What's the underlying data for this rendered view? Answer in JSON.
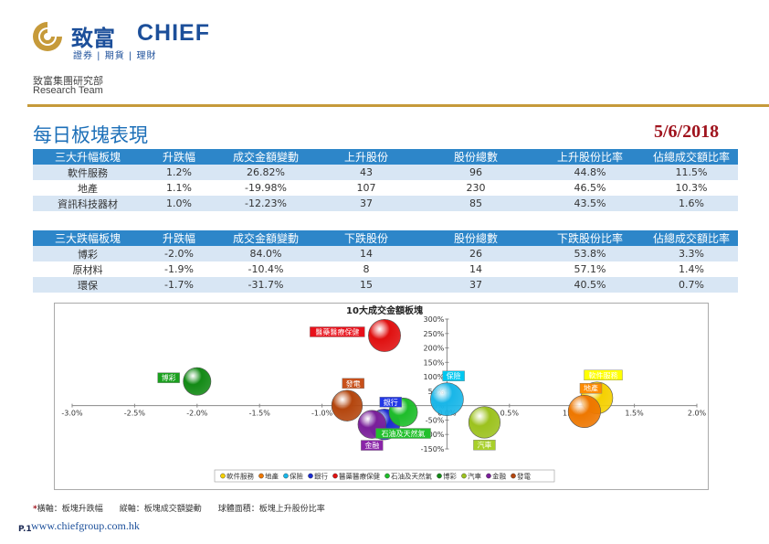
{
  "logo": {
    "cn": "致富",
    "en": "CHIEF",
    "sub": "證券 | 期貨 | 理財"
  },
  "dept": {
    "cn": "致富集團研究部",
    "en": "Research Team"
  },
  "title": "每日板塊表現",
  "date": "5/6/2018",
  "colors": {
    "header_bg": "#2d86c9",
    "alt_row": "#d8e6f4",
    "gold": "#c69a3a",
    "date": "#a0141e"
  },
  "top_table": {
    "headers": [
      "三大升幅板塊",
      "升跌幅",
      "成交金額變動",
      "上升股份",
      "股份總數",
      "上升股份比率",
      "佔總成交額比率"
    ],
    "rows": [
      [
        "軟件服務",
        "1.2%",
        "26.82%",
        "43",
        "96",
        "44.8%",
        "11.5%"
      ],
      [
        "地產",
        "1.1%",
        "-19.98%",
        "107",
        "230",
        "46.5%",
        "10.3%"
      ],
      [
        "資訊科技器材",
        "1.0%",
        "-12.23%",
        "37",
        "85",
        "43.5%",
        "1.6%"
      ]
    ]
  },
  "bottom_table": {
    "headers": [
      "三大跌幅板塊",
      "升跌幅",
      "成交金額變動",
      "下跌股份",
      "股份總數",
      "下跌股份比率",
      "佔總成交額比率"
    ],
    "rows": [
      [
        "博彩",
        "-2.0%",
        "84.0%",
        "14",
        "26",
        "53.8%",
        "3.3%"
      ],
      [
        "原材料",
        "-1.9%",
        "-10.4%",
        "8",
        "14",
        "57.1%",
        "1.4%"
      ],
      [
        "環保",
        "-1.7%",
        "-31.7%",
        "15",
        "37",
        "40.5%",
        "0.7%"
      ]
    ]
  },
  "chart_data": {
    "type": "scatter",
    "title": "10大成交金額板塊",
    "x_ticks": [
      "-3.0%",
      "-2.5%",
      "-2.0%",
      "-1.5%",
      "-1.0%",
      "-0.5%",
      "0.0%",
      "0.5%",
      "1.0%",
      "1.5%",
      "2.0%"
    ],
    "y_ticks": [
      "300%",
      "250%",
      "200%",
      "150%",
      "100%",
      "50%",
      "0%",
      "-50%",
      "-100%",
      "-150%"
    ],
    "xlim": [
      -3.0,
      2.0
    ],
    "ylim": [
      -150,
      300
    ],
    "series": [
      {
        "name": "軟件服務",
        "x": 1.2,
        "y": 26.82,
        "size": 44.8,
        "color": "#f5d000",
        "label_bg": "#ffff00",
        "label_dir": "up"
      },
      {
        "name": "地產",
        "x": 1.1,
        "y": -19.98,
        "size": 46.5,
        "color": "#ee7700",
        "label_bg": "#ff8c00",
        "label_dir": "up"
      },
      {
        "name": "保險",
        "x": 0.0,
        "y": 22,
        "size": 48,
        "color": "#19b6e8",
        "label_bg": "#00c8f0",
        "label_dir": "up"
      },
      {
        "name": "銀行",
        "x": -0.5,
        "y": -65,
        "size": 42,
        "color": "#1a2bd0",
        "label_bg": "#2238e6",
        "label_dir": "up"
      },
      {
        "name": "醫藥醫療保健",
        "x": -0.5,
        "y": 243,
        "size": 46,
        "color": "#e01010",
        "label_bg": "#e8101a",
        "label_dir": "left"
      },
      {
        "name": "石油及天然氣",
        "x": -0.35,
        "y": -23,
        "size": 36,
        "color": "#1ebd2a",
        "label_bg": "#22c02c",
        "label_dir": "down"
      },
      {
        "name": "博彩",
        "x": -2.0,
        "y": 84.0,
        "size": 34,
        "color": "#138a16",
        "label_bg": "#1aa01e",
        "label_dir": "left"
      },
      {
        "name": "汽車",
        "x": 0.3,
        "y": -58,
        "size": 44,
        "color": "#9cc21e",
        "label_bg": "#a8d02a",
        "label_dir": "down"
      },
      {
        "name": "金融",
        "x": -0.6,
        "y": -65,
        "size": 35,
        "color": "#7a1f9a",
        "label_bg": "#8a24a8",
        "label_dir": "down"
      },
      {
        "name": "發電",
        "x": -0.8,
        "y": 0,
        "size": 42,
        "color": "#b4460e",
        "label_bg": "#c8501a",
        "label_dir": "up"
      }
    ]
  },
  "footnote": {
    "star": "*",
    "text": "橫軸：板塊升跌幅　　縱軸：板塊成交額變動　　球體面積：板塊上升股份比率"
  },
  "footer": {
    "page": "P.1",
    "website": "www.chiefgroup.com.hk"
  }
}
